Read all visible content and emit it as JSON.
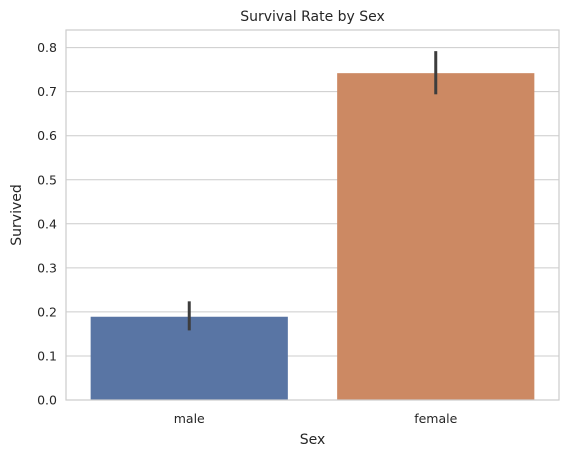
{
  "chart_data": {
    "type": "bar",
    "title": "Survival Rate by Sex",
    "xlabel": "Sex",
    "ylabel": "Survived",
    "categories": [
      "male",
      "female"
    ],
    "values": [
      0.189,
      0.742
    ],
    "error_low": [
      0.158,
      0.694
    ],
    "error_high": [
      0.224,
      0.792
    ],
    "colors": [
      "#5975a4",
      "#cc8963"
    ],
    "ylim": [
      0,
      0.84
    ],
    "yticks": [
      0.0,
      0.1,
      0.2,
      0.3,
      0.4,
      0.5,
      0.6,
      0.7,
      0.8
    ],
    "ytick_labels": [
      "0.0",
      "0.1",
      "0.2",
      "0.3",
      "0.4",
      "0.5",
      "0.6",
      "0.7",
      "0.8"
    ],
    "grid": true
  }
}
